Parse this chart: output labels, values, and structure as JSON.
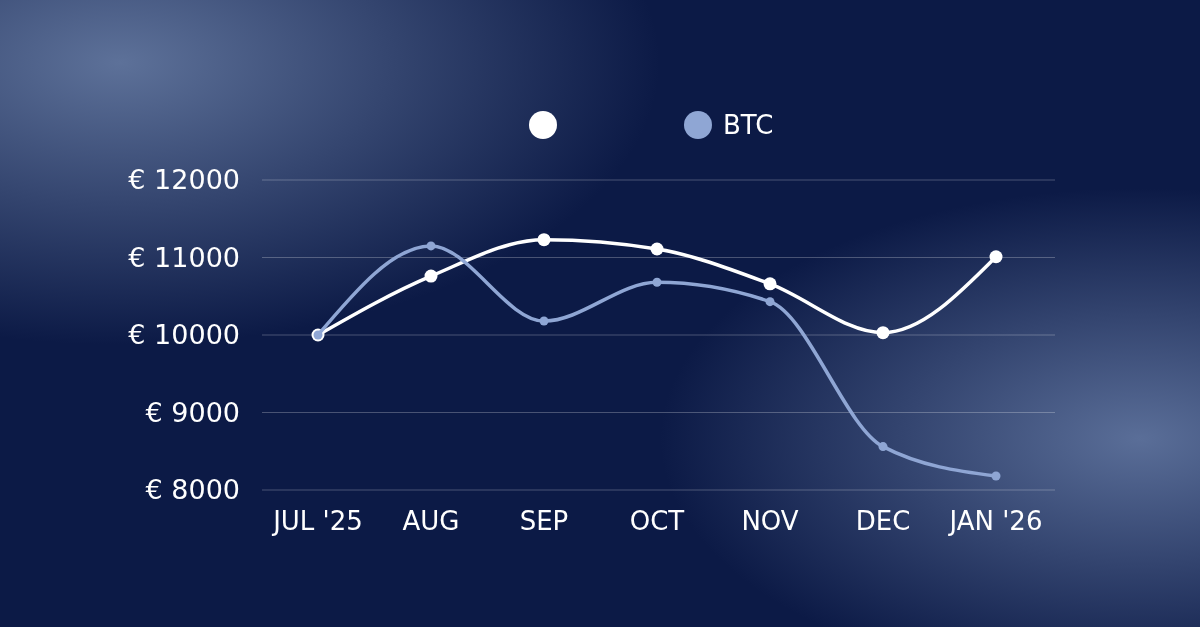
{
  "chart_data": {
    "type": "line",
    "categories": [
      "JUL '25",
      "AUG",
      "SEP",
      "OCT",
      "NOV",
      "DEC",
      "JAN '26"
    ],
    "series": [
      {
        "color": "#ffffff",
        "values": [
          10000,
          10760,
          11230,
          11110,
          10660,
          10030,
          11010
        ]
      },
      {
        "name": "BTC",
        "color": "#8fa6d4",
        "values": [
          10000,
          11150,
          10180,
          10680,
          10430,
          8560,
          8180
        ]
      }
    ],
    "ylim": [
      8000,
      12000
    ],
    "yticks": [
      {
        "value": 8000,
        "label": "€ 8000"
      },
      {
        "value": 9000,
        "label": "€ 9000"
      },
      {
        "value": 10000,
        "label": "€ 10000"
      },
      {
        "value": 11000,
        "label": "€ 11000"
      },
      {
        "value": 12000,
        "label": "€ 12000"
      }
    ],
    "grid": "y",
    "legend": "top",
    "marker": "circle",
    "line_style": "solid"
  }
}
